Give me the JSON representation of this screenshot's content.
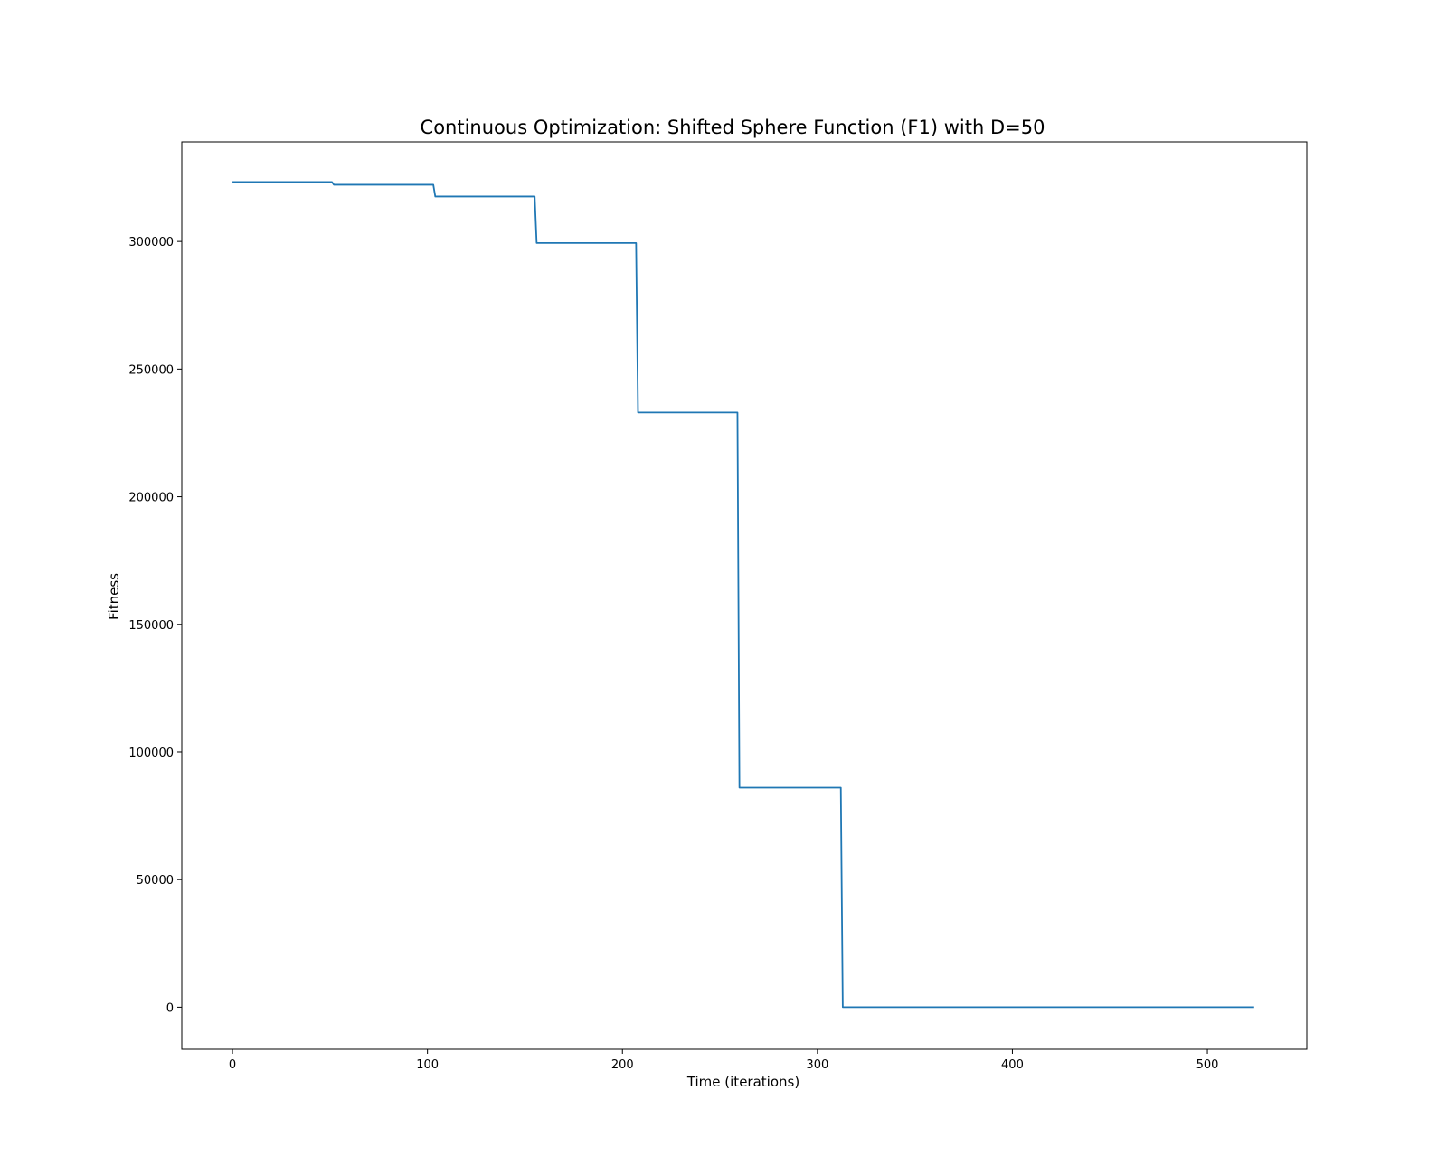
{
  "chart_data": {
    "type": "line",
    "title": "Continuous Optimization: Shifted Sphere Function (F1) with D=50",
    "xlabel": "Time (iterations)",
    "ylabel": "Fitness",
    "xlim": [
      -26,
      551
    ],
    "ylim": [
      -16500,
      339000
    ],
    "xticks": [
      0,
      100,
      200,
      300,
      400,
      500
    ],
    "yticks": [
      0,
      50000,
      100000,
      150000,
      200000,
      250000,
      300000
    ],
    "grid": false,
    "legend": "none",
    "series": [
      {
        "color": "#1f77b4",
        "x": [
          0,
          51,
          52,
          103,
          104,
          155,
          156,
          207,
          208,
          259,
          260,
          312,
          313,
          524
        ],
        "y": [
          323300,
          323300,
          322200,
          322200,
          317600,
          317600,
          299400,
          299400,
          233000,
          233000,
          86000,
          86000,
          0,
          0
        ]
      }
    ]
  }
}
